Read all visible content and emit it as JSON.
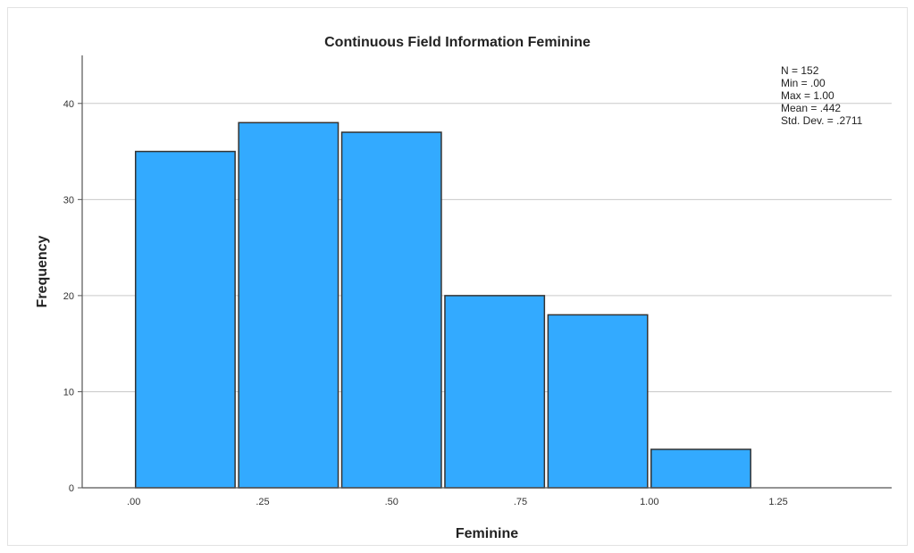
{
  "chart_data": {
    "type": "bar",
    "title": "Continuous Field Information Feminine",
    "xlabel": "Feminine",
    "ylabel": "Frequency",
    "bins": [
      {
        "start": 0.0,
        "end": 0.2,
        "count": 35
      },
      {
        "start": 0.2,
        "end": 0.4,
        "count": 38
      },
      {
        "start": 0.4,
        "end": 0.6,
        "count": 37
      },
      {
        "start": 0.6,
        "end": 0.8,
        "count": 20
      },
      {
        "start": 0.8,
        "end": 1.0,
        "count": 18
      },
      {
        "start": 1.0,
        "end": 1.2,
        "count": 4
      }
    ],
    "xlim": [
      -0.1,
      1.47
    ],
    "ylim": [
      0,
      45
    ],
    "x_ticks": [
      {
        "value": 0.0,
        "label": ".00"
      },
      {
        "value": 0.25,
        "label": ".25"
      },
      {
        "value": 0.5,
        "label": ".50"
      },
      {
        "value": 0.75,
        "label": ".75"
      },
      {
        "value": 1.0,
        "label": "1.00"
      },
      {
        "value": 1.25,
        "label": "1.25"
      }
    ],
    "y_ticks": [
      0,
      10,
      20,
      30,
      40
    ],
    "grid": "horizontal",
    "bar_color": "#33aaff",
    "bar_edge_color": "#333333",
    "stats": [
      "N = 152",
      "Min = .00",
      "Max = 1.00",
      "Mean = .442",
      "Std. Dev. = .2711"
    ]
  }
}
